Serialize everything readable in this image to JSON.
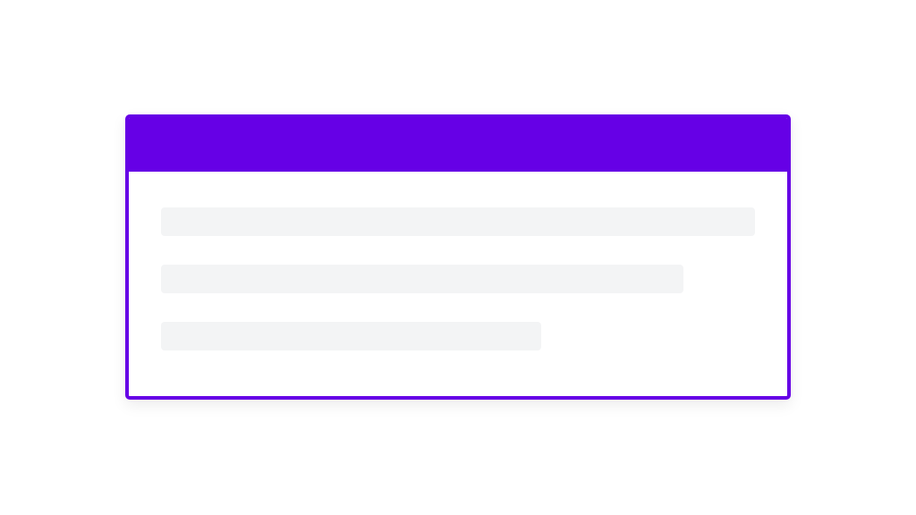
{
  "colors": {
    "accent": "#6600e6",
    "skeleton": "#f3f4f5",
    "background": "#ffffff"
  },
  "skeleton_lines": [
    {
      "fill_fraction": 1.0
    },
    {
      "fill_fraction": 0.88
    },
    {
      "fill_fraction": 0.64
    }
  ]
}
